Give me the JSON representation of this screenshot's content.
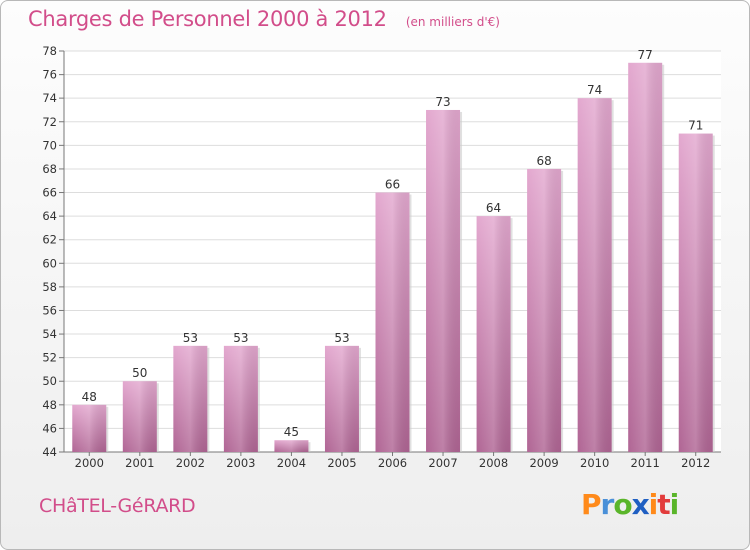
{
  "header": {
    "title": "Charges de Personnel 2000 à 2012",
    "subtitle": "(en milliers d'€)"
  },
  "commune": "CHâTEL-GéRARD",
  "logo": "Proxiti",
  "colors": {
    "accent": "#d24d8a",
    "bar_top": "#e3a8cf",
    "bar_bottom": "#b06594"
  },
  "chart_data": {
    "type": "bar",
    "title": "Charges de Personnel 2000 à 2012",
    "subtitle": "(en milliers d'€)",
    "categories": [
      "2000",
      "2001",
      "2002",
      "2003",
      "2004",
      "2005",
      "2006",
      "2007",
      "2008",
      "2009",
      "2010",
      "2011",
      "2012"
    ],
    "values": [
      48,
      50,
      53,
      53,
      45,
      53,
      66,
      73,
      64,
      68,
      74,
      77,
      71
    ],
    "ylim": [
      44,
      78
    ],
    "yticks": [
      44,
      46,
      48,
      50,
      52,
      54,
      56,
      58,
      60,
      62,
      64,
      66,
      68,
      70,
      72,
      74,
      76,
      78
    ],
    "grid": true,
    "xlabel": "",
    "ylabel": ""
  }
}
